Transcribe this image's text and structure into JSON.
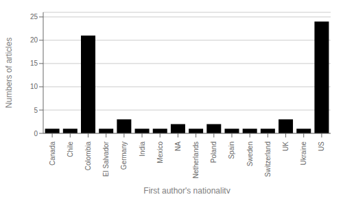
{
  "chart_data": {
    "type": "bar",
    "categories": [
      "Canada",
      "Chile",
      "Colombia",
      "El Salvador",
      "Germany",
      "India",
      "Mexico",
      "NA",
      "Netherlands",
      "Poland",
      "Spain",
      "Sweden",
      "Switzerland",
      "UK",
      "Ukraine",
      "US"
    ],
    "values": [
      1,
      1,
      21,
      1,
      3,
      1,
      1,
      2,
      1,
      2,
      1,
      1,
      1,
      3,
      1,
      24
    ],
    "color": "#000000",
    "xlabel": "First author's nationality",
    "ylabel": "Numbers of articles",
    "ylim": [
      0,
      26
    ],
    "yticks": [
      0,
      5,
      10,
      15,
      20,
      25
    ],
    "grid": true
  }
}
